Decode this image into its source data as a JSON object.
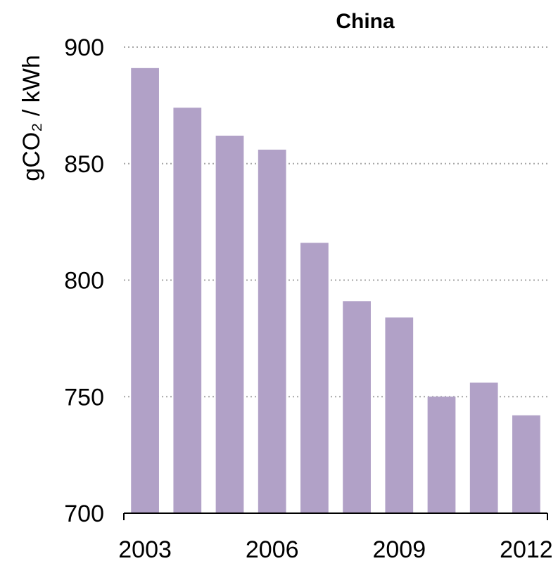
{
  "chart_data": {
    "type": "bar",
    "title": "China",
    "xlabel": "",
    "ylabel": "gCO₂ / kWh",
    "ylim": [
      700,
      900
    ],
    "y_ticks": [
      700,
      750,
      800,
      850,
      900
    ],
    "categories": [
      "2003",
      "2004",
      "2005",
      "2006",
      "2007",
      "2008",
      "2009",
      "2010",
      "2011",
      "2012"
    ],
    "x_tick_labels": [
      "2003",
      "2006",
      "2009",
      "2012"
    ],
    "values": [
      891,
      874,
      862,
      856,
      816,
      791,
      784,
      750,
      756,
      742
    ],
    "bar_color": "#b1a1c7",
    "grid": true,
    "grid_style": "dotted",
    "legend": "none"
  }
}
